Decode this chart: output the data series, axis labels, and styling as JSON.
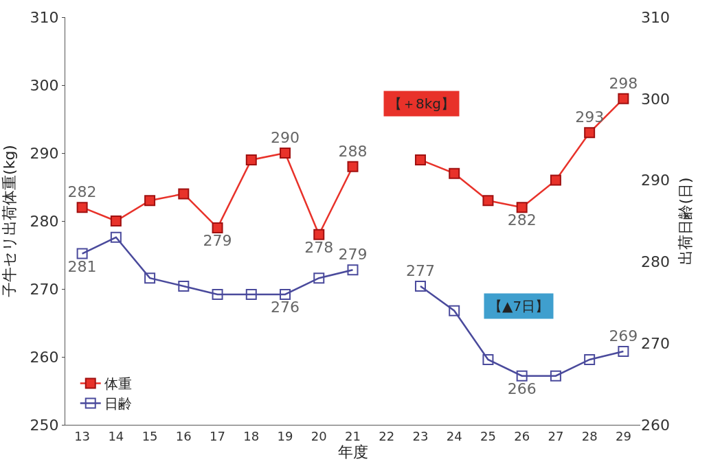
{
  "chart_data": {
    "type": "line",
    "xlabel": "年度",
    "ylabel": "子牛セリ出荷体重(kg)",
    "y2label": "出荷日齢(日)",
    "categories": [
      "13",
      "14",
      "15",
      "16",
      "17",
      "18",
      "19",
      "20",
      "21",
      "22",
      "23",
      "24",
      "25",
      "26",
      "27",
      "28",
      "29"
    ],
    "series": [
      {
        "name": "体重",
        "color": "#e8322a",
        "values": [
          282,
          280,
          283,
          284,
          279,
          289,
          290,
          278,
          288,
          null,
          289,
          287,
          283,
          282,
          286,
          293,
          298
        ],
        "value_labels": [
          "282",
          null,
          null,
          null,
          "279",
          null,
          "290",
          "278",
          "288",
          null,
          null,
          null,
          null,
          "282",
          null,
          "293",
          "298"
        ]
      },
      {
        "name": "日齢",
        "color": "#4a4a9c",
        "axis": "y2",
        "values": [
          281,
          283,
          278,
          277,
          276,
          276,
          276,
          278,
          279,
          null,
          277,
          274,
          268,
          266,
          266,
          268,
          269
        ],
        "value_labels": [
          "281",
          null,
          null,
          null,
          null,
          null,
          "276",
          null,
          "279",
          null,
          "277",
          null,
          null,
          "266",
          null,
          null,
          "269"
        ]
      }
    ],
    "ylim": [
      250,
      310
    ],
    "yticks": [
      250,
      260,
      270,
      280,
      290,
      300,
      310
    ],
    "y2lim": [
      260,
      310
    ],
    "y2ticks": [
      260,
      270,
      280,
      290,
      300,
      310
    ],
    "annotations": [
      "【＋8kg】",
      "【▲7日】"
    ],
    "marker": "square",
    "legend": "bottom left"
  }
}
